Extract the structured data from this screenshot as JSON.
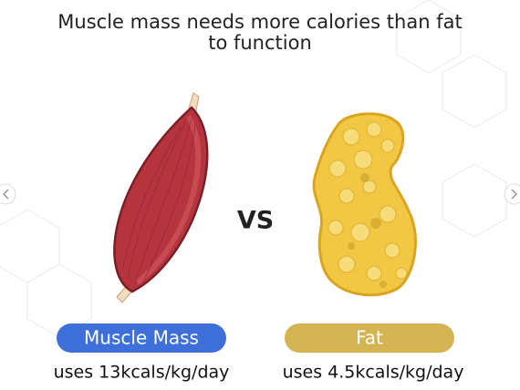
{
  "title": {
    "lines": [
      "Muscle mass needs more calories than fat",
      "to function"
    ]
  },
  "vs": "VS",
  "items": [
    {
      "label": "Muscle Mass",
      "caption": "uses 13kcals/kg/day"
    },
    {
      "label": "Fat",
      "caption": "uses 4.5kcals/kg/day"
    }
  ]
}
